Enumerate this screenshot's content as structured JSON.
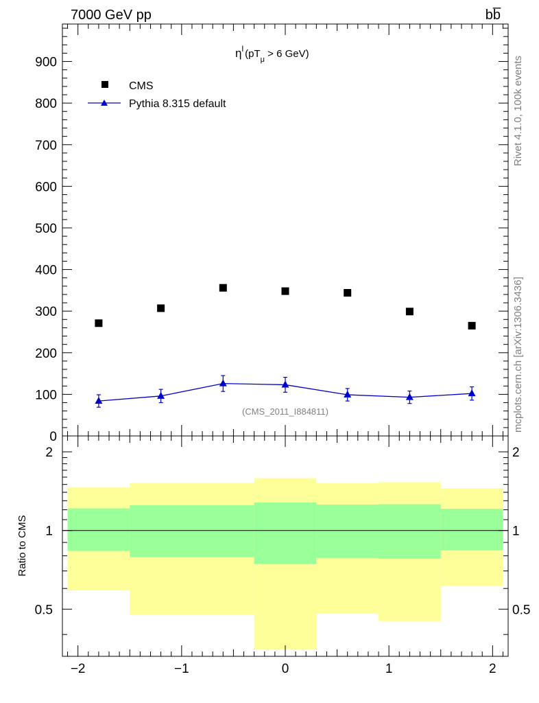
{
  "header": {
    "energy_label": "7000 GeV pp",
    "process_label": "bb̅"
  },
  "side_labels": {
    "rivet": "Rivet 4.1.0,  100k events",
    "mcplots": "mcplots.cern.ch [arXiv:1306.3436]"
  },
  "chart_data": [
    {
      "type": "scatter",
      "title": "η^l (pT_μ > 6 GeV)",
      "title_parts": {
        "eta": "η",
        "sup": "l",
        "open": "(pT",
        "sub": "μ",
        "close": " >  6 GeV)"
      },
      "watermark": "(CMS_2011_I884811)",
      "xlim": [
        -2.15,
        2.15
      ],
      "ylim": [
        0,
        990
      ],
      "yticks": [
        0,
        100,
        200,
        300,
        400,
        500,
        600,
        700,
        800,
        900
      ],
      "ytick_labels": [
        "0",
        "100",
        "200",
        "300",
        "400",
        "500",
        "600",
        "700",
        "800",
        "900"
      ],
      "legend_position": "top-left",
      "series": [
        {
          "name": "CMS",
          "marker": "square",
          "color": "#000000",
          "x": [
            -1.8,
            -1.2,
            -0.6,
            0.0,
            0.6,
            1.2,
            1.8
          ],
          "y": [
            271,
            307,
            356,
            348,
            344,
            299,
            265
          ]
        },
        {
          "name": "Pythia 8.315 default",
          "marker": "triangle",
          "color": "#0000cc",
          "x": [
            -1.8,
            -1.2,
            -0.6,
            0.0,
            0.6,
            1.2,
            1.8
          ],
          "y": [
            84,
            96,
            126,
            123,
            99,
            93,
            102
          ],
          "yerr": [
            15,
            16,
            19,
            18,
            15,
            15,
            16
          ]
        }
      ]
    },
    {
      "type": "area",
      "ylabel": "Ratio to CMS",
      "xlabel": "",
      "ylim": [
        0.33,
        2.3
      ],
      "yticks": [
        0.5,
        1,
        2
      ],
      "ytick_labels": [
        "0.5",
        "1",
        "2"
      ],
      "xticks": [
        -2,
        -1,
        0,
        1,
        2
      ],
      "xtick_labels": [
        "−2",
        "−1",
        "0",
        "1",
        "2"
      ],
      "reference_line": 1,
      "bins": [
        {
          "x_low": -2.1,
          "x_high": -1.5,
          "stat_low": 0.835,
          "stat_high": 1.215,
          "total_low": 0.59,
          "total_high": 1.46
        },
        {
          "x_low": -1.5,
          "x_high": -0.3,
          "stat_low": 0.79,
          "stat_high": 1.25,
          "total_low": 0.475,
          "total_high": 1.52
        },
        {
          "x_low": -0.3,
          "x_high": 0.3,
          "stat_low": 0.745,
          "stat_high": 1.28,
          "total_low": 0.35,
          "total_high": 1.585
        },
        {
          "x_low": 0.3,
          "x_high": 0.9,
          "stat_low": 0.785,
          "stat_high": 1.255,
          "total_low": 0.48,
          "total_high": 1.515
        },
        {
          "x_low": 0.9,
          "x_high": 1.5,
          "stat_low": 0.78,
          "stat_high": 1.26,
          "total_low": 0.45,
          "total_high": 1.53
        },
        {
          "x_low": 1.5,
          "x_high": 2.1,
          "stat_low": 0.84,
          "stat_high": 1.21,
          "total_low": 0.615,
          "total_high": 1.45
        }
      ],
      "colors": {
        "stat": "#99ff99",
        "total": "#ffff99"
      }
    }
  ]
}
